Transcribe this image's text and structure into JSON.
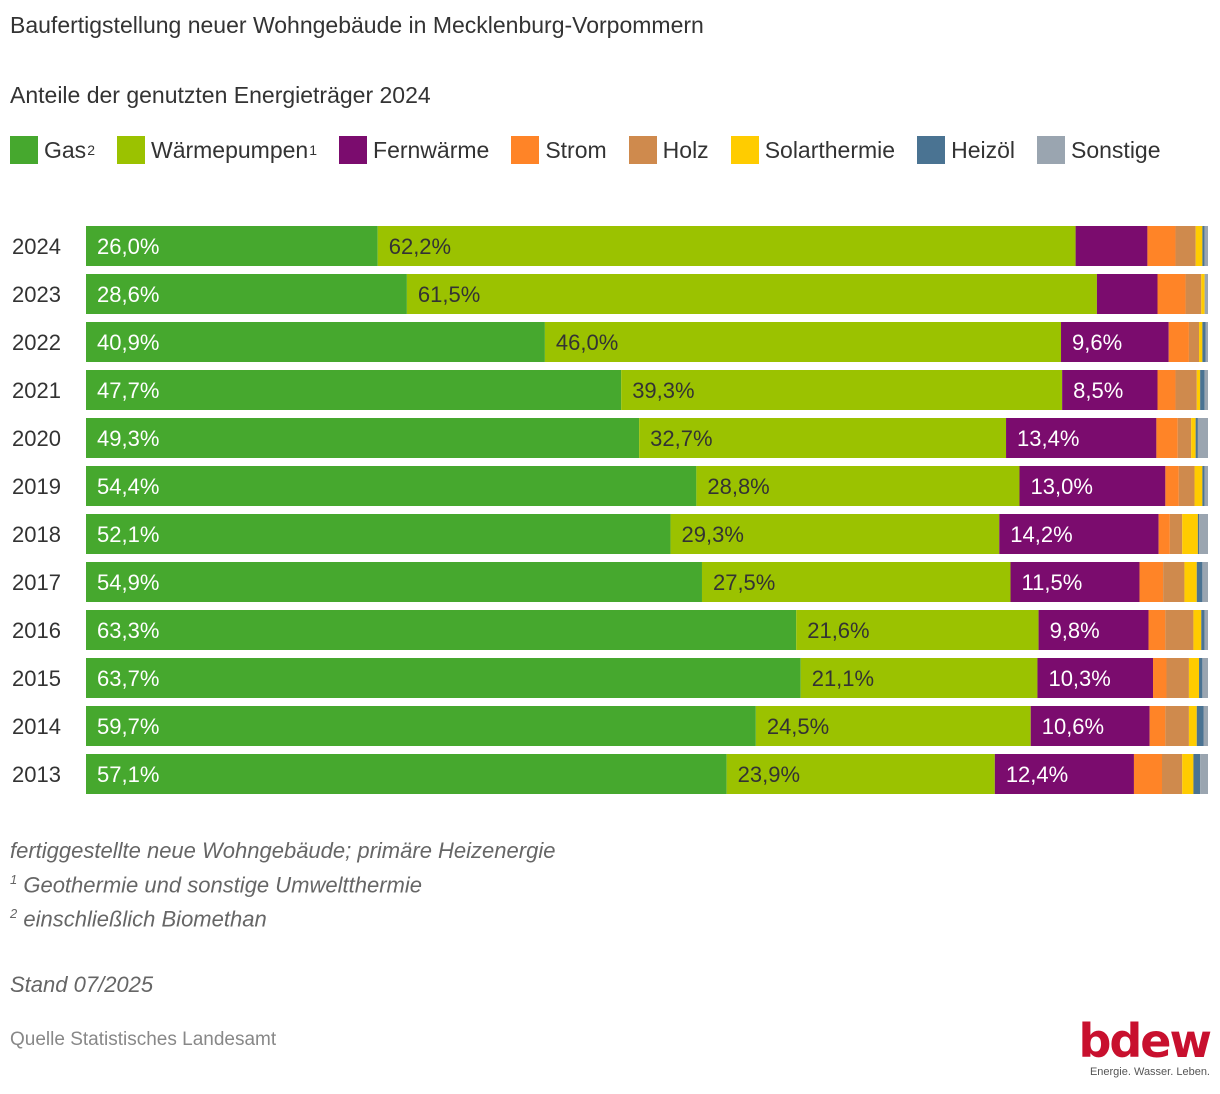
{
  "title": "Baufertigstellung neuer Wohngebäude in Mecklenburg-Vorpommern",
  "subtitle": "Anteile der genutzten Energieträger 2024",
  "legend": [
    {
      "label": "Gas",
      "sup": "2",
      "color": "#46a82e"
    },
    {
      "label": "Wärmepumpen",
      "sup": "1",
      "color": "#9bc200"
    },
    {
      "label": "Fernwärme",
      "sup": "",
      "color": "#7b0c6e"
    },
    {
      "label": "Strom",
      "sup": "",
      "color": "#ff8427"
    },
    {
      "label": "Holz",
      "sup": "",
      "color": "#cf8a4d"
    },
    {
      "label": "Solarthermie",
      "sup": "",
      "color": "#ffcc00"
    },
    {
      "label": "Heizöl",
      "sup": "",
      "color": "#4a7392"
    },
    {
      "label": "Sonstige",
      "sup": "",
      "color": "#9aa5b0"
    }
  ],
  "chart_data": {
    "type": "bar",
    "orientation": "horizontal",
    "stacked": true,
    "categories": [
      "2024",
      "2023",
      "2022",
      "2021",
      "2020",
      "2019",
      "2018",
      "2017",
      "2016",
      "2015",
      "2014",
      "2013"
    ],
    "series": [
      {
        "name": "Gas",
        "color": "#46a82e",
        "values": [
          26.0,
          28.6,
          40.9,
          47.7,
          49.3,
          54.4,
          52.1,
          54.9,
          63.3,
          63.7,
          59.7,
          57.1
        ]
      },
      {
        "name": "Wärmepumpen",
        "color": "#9bc200",
        "values": [
          62.2,
          61.5,
          46.0,
          39.3,
          32.7,
          28.8,
          29.3,
          27.5,
          21.6,
          21.1,
          24.5,
          23.9
        ]
      },
      {
        "name": "Fernwärme",
        "color": "#7b0c6e",
        "values": [
          6.4,
          5.4,
          9.6,
          8.5,
          13.4,
          13.0,
          14.2,
          11.5,
          9.8,
          10.3,
          10.6,
          12.4
        ]
      },
      {
        "name": "Strom",
        "color": "#ff8427",
        "values": [
          2.5,
          2.5,
          1.8,
          1.6,
          1.9,
          1.2,
          1.0,
          2.1,
          1.5,
          1.2,
          1.4,
          2.5
        ]
      },
      {
        "name": "Holz",
        "color": "#cf8a4d",
        "values": [
          1.8,
          1.4,
          0.9,
          1.9,
          1.2,
          1.4,
          1.1,
          1.9,
          2.5,
          2.0,
          2.1,
          1.8
        ]
      },
      {
        "name": "Solarthermie",
        "color": "#ffcc00",
        "values": [
          0.6,
          0.3,
          0.3,
          0.3,
          0.4,
          0.7,
          1.4,
          1.1,
          0.7,
          0.9,
          0.7,
          1.0
        ]
      },
      {
        "name": "Heizöl",
        "color": "#4a7392",
        "values": [
          0.2,
          0.0,
          0.3,
          0.4,
          0.2,
          0.2,
          0.1,
          0.5,
          0.3,
          0.3,
          0.6,
          0.6
        ]
      },
      {
        "name": "Sonstige",
        "color": "#9aa5b0",
        "values": [
          0.3,
          0.3,
          0.2,
          0.3,
          0.9,
          0.3,
          0.8,
          0.5,
          0.3,
          0.5,
          0.4,
          0.7
        ]
      }
    ],
    "data_labels": [
      [
        "26,0%",
        "62,2%",
        "",
        "",
        "",
        "",
        "",
        ""
      ],
      [
        "28,6%",
        "61,5%",
        "",
        "",
        "",
        "",
        "",
        ""
      ],
      [
        "40,9%",
        "46,0%",
        "9,6%",
        "",
        "",
        "",
        "",
        ""
      ],
      [
        "47,7%",
        "39,3%",
        "8,5%",
        "",
        "",
        "",
        "",
        ""
      ],
      [
        "49,3%",
        "32,7%",
        "13,4%",
        "",
        "",
        "",
        "",
        ""
      ],
      [
        "54,4%",
        "28,8%",
        "13,0%",
        "",
        "",
        "",
        "",
        ""
      ],
      [
        "52,1%",
        "29,3%",
        "14,2%",
        "",
        "",
        "",
        "",
        ""
      ],
      [
        "54,9%",
        "27,5%",
        "11,5%",
        "",
        "",
        "",
        "",
        ""
      ],
      [
        "63,3%",
        "21,6%",
        "9,8%",
        "",
        "",
        "",
        "",
        ""
      ],
      [
        "63,7%",
        "21,1%",
        "10,3%",
        "",
        "",
        "",
        "",
        ""
      ],
      [
        "59,7%",
        "24,5%",
        "10,6%",
        "",
        "",
        "",
        "",
        ""
      ],
      [
        "57,1%",
        "23,9%",
        "12,4%",
        "",
        "",
        "",
        "",
        ""
      ]
    ],
    "label_colors": [
      "#ffffff",
      "#333333",
      "#ffffff"
    ],
    "xlim": [
      0,
      100
    ],
    "grid": false,
    "legend": "top-left"
  },
  "notes": {
    "line1": "fertiggestellte neue Wohngebäude; primäre Heizenergie",
    "line2_sup": "1",
    "line2": " Geothermie und sonstige Umweltthermie",
    "line3_sup": "2",
    "line3": " einschließlich Biomethan"
  },
  "stand": "Stand 07/2025",
  "source": "Quelle Statistisches Landesamt",
  "logo": {
    "wordmark": "bdew",
    "claim": "Energie. Wasser. Leben."
  }
}
